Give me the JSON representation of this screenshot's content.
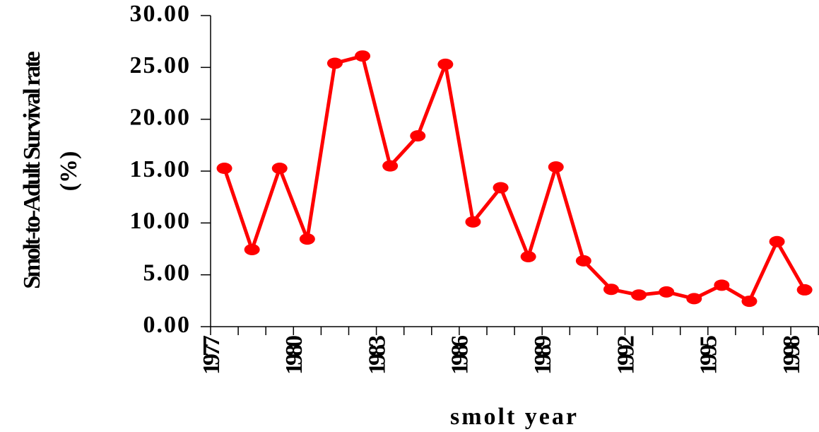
{
  "chart_data": {
    "type": "line",
    "ylabel": [
      "Smolt-to-Adult Survival rate",
      "(%)"
    ],
    "xlabel": "smolt year",
    "categories": [
      "1977",
      null,
      null,
      "1980",
      null,
      null,
      "1983",
      null,
      null,
      "1986",
      null,
      null,
      "1989",
      null,
      null,
      "1992",
      null,
      null,
      "1995",
      null,
      null,
      "1998"
    ],
    "series": [
      {
        "color": "#ff0000",
        "values": [
          15.27,
          7.43,
          15.27,
          8.45,
          25.4,
          26.1,
          15.5,
          18.4,
          25.3,
          10.1,
          13.4,
          6.75,
          15.4,
          6.35,
          3.6,
          3.05,
          3.35,
          2.7,
          4.0,
          2.45,
          8.2,
          3.55
        ]
      }
    ],
    "ylim": [
      0,
      30
    ],
    "yticks": [
      {
        "value": 0,
        "label": "0.00"
      },
      {
        "value": 5,
        "label": "5.00"
      },
      {
        "value": 10,
        "label": "10.00"
      },
      {
        "value": 15,
        "label": "15.00"
      },
      {
        "value": 20,
        "label": "20.00"
      },
      {
        "value": 25,
        "label": "25.00"
      },
      {
        "value": 30,
        "label": "30.00"
      }
    ]
  }
}
